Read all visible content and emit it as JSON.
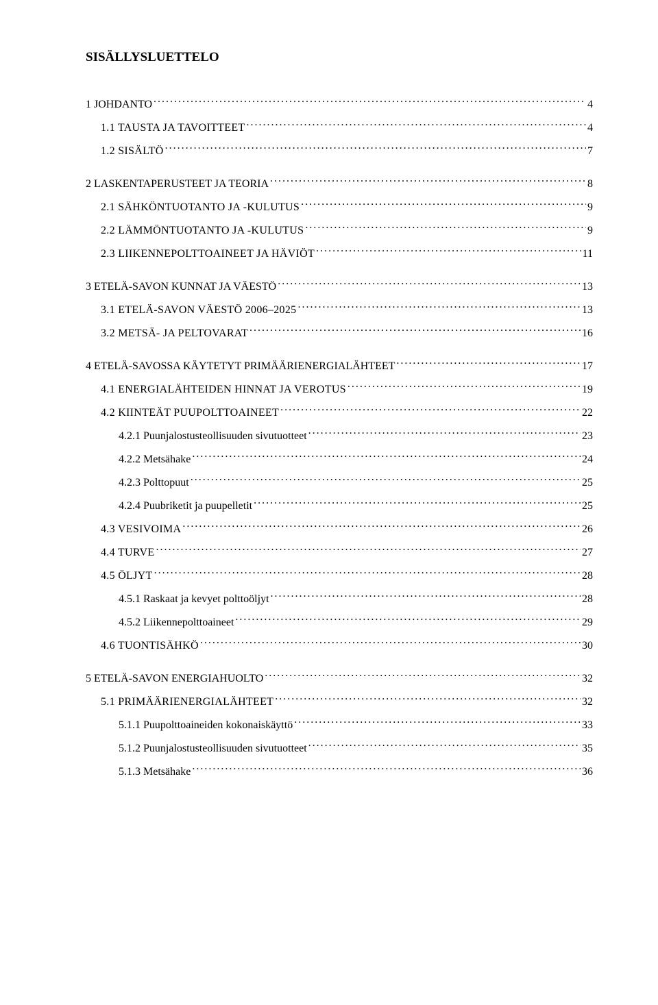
{
  "title": "SISÄLLYSLUETTELO",
  "colors": {
    "background": "#ffffff",
    "text": "#000000"
  },
  "typography": {
    "font_family": "Times New Roman",
    "body_fontsize": 16,
    "title_fontsize": 19,
    "title_weight": "bold"
  },
  "toc": [
    {
      "level": 1,
      "label": "1 JOHDANTO",
      "page": "4",
      "sc": false
    },
    {
      "level": 2,
      "label": "1.1 TAUSTA JA TAVOITTEET",
      "page": "4",
      "sc": true
    },
    {
      "level": 2,
      "label": "1.2 SISÄLTÖ",
      "page": "7",
      "sc": true
    },
    {
      "level": 1,
      "label": "2 LASKENTAPERUSTEET JA TEORIA",
      "page": "8",
      "sc": false
    },
    {
      "level": 2,
      "label": "2.1 SÄHKÖNTUOTANTO JA -KULUTUS",
      "page": "9",
      "sc": true
    },
    {
      "level": 2,
      "label": "2.2 LÄMMÖNTUOTANTO JA -KULUTUS",
      "page": "9",
      "sc": true
    },
    {
      "level": 2,
      "label": "2.3 LIIKENNEPOLTTOAINEET JA HÄVIÖT",
      "page": "11",
      "sc": true
    },
    {
      "level": 1,
      "label": "3 ETELÄ-SAVON KUNNAT JA VÄESTÖ",
      "page": "13",
      "sc": false
    },
    {
      "level": 2,
      "label": "3.1 ETELÄ-SAVON VÄESTÖ 2006–2025",
      "page": "13",
      "sc": true
    },
    {
      "level": 2,
      "label": "3.2 METSÄ- JA PELTOVARAT",
      "page": "16",
      "sc": true
    },
    {
      "level": 1,
      "label": "4 ETELÄ-SAVOSSA KÄYTETYT PRIMÄÄRIENERGIALÄHTEET",
      "page": "17",
      "sc": false
    },
    {
      "level": 2,
      "label": "4.1 ENERGIALÄHTEIDEN HINNAT JA VEROTUS",
      "page": "19",
      "sc": true
    },
    {
      "level": 2,
      "label": "4.2 KIINTEÄT PUUPOLTTOAINEET",
      "page": "22",
      "sc": true
    },
    {
      "level": 3,
      "label": "4.2.1 Puunjalostusteollisuuden sivutuotteet",
      "page": "23",
      "sc": false
    },
    {
      "level": 3,
      "label": "4.2.2 Metsähake",
      "page": "24",
      "sc": false
    },
    {
      "level": 3,
      "label": "4.2.3 Polttopuut",
      "page": "25",
      "sc": false
    },
    {
      "level": 3,
      "label": "4.2.4 Puubriketit ja puupelletit",
      "page": "25",
      "sc": false
    },
    {
      "level": 2,
      "label": "4.3 VESIVOIMA",
      "page": "26",
      "sc": true
    },
    {
      "level": 2,
      "label": "4.4 TURVE",
      "page": "27",
      "sc": true
    },
    {
      "level": 2,
      "label": "4.5 ÖLJYT",
      "page": "28",
      "sc": true
    },
    {
      "level": 3,
      "label": "4.5.1 Raskaat ja kevyet polttoöljyt",
      "page": "28",
      "sc": false
    },
    {
      "level": 3,
      "label": "4.5.2 Liikennepolttoaineet",
      "page": "29",
      "sc": false
    },
    {
      "level": 2,
      "label": "4.6 TUONTISÄHKÖ",
      "page": "30",
      "sc": true
    },
    {
      "level": 1,
      "label": "5 ETELÄ-SAVON ENERGIAHUOLTO",
      "page": "32",
      "sc": false
    },
    {
      "level": 2,
      "label": "5.1 PRIMÄÄRIENERGIALÄHTEET",
      "page": "32",
      "sc": true
    },
    {
      "level": 3,
      "label": "5.1.1 Puupolttoaineiden kokonaiskäyttö",
      "page": "33",
      "sc": false
    },
    {
      "level": 3,
      "label": "5.1.2 Puunjalostusteollisuuden sivutuotteet",
      "page": "35",
      "sc": false
    },
    {
      "level": 3,
      "label": "5.1.3 Metsähake",
      "page": "36",
      "sc": false
    }
  ]
}
